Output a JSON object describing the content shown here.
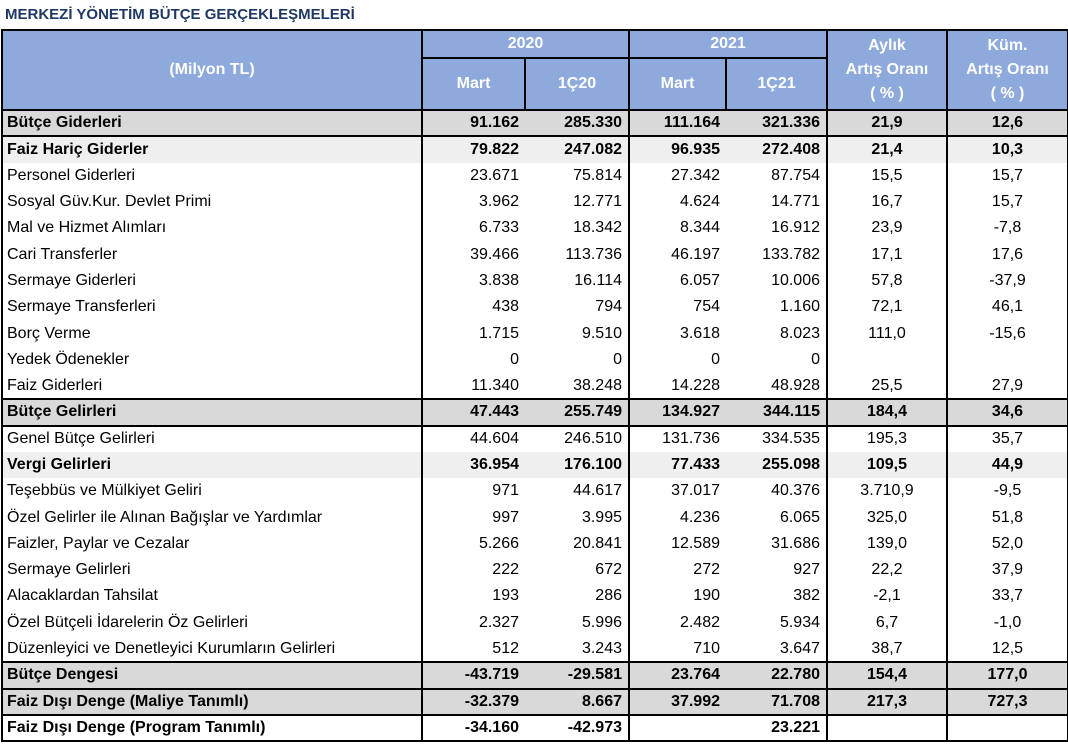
{
  "title": "MERKEZİ YÖNETİM BÜTÇE GERÇEKLEŞMELERİ",
  "header": {
    "unit_label": "(Milyon TL)",
    "year_2020": "2020",
    "year_2021": "2021",
    "col_mart_2020": "Mart",
    "col_q_2020": "1Ç20",
    "col_mart_2021": "Mart",
    "col_q_2021": "1Ç21",
    "monthly_line1": "Aylık",
    "monthly_line2": "Artış Oranı",
    "monthly_line3": "( % )",
    "cum_line1": "Küm.",
    "cum_line2": "Artış Oranı",
    "cum_line3": "( % )"
  },
  "rows": [
    {
      "name": "Bütçe Giderleri",
      "m2020": "91.162",
      "q2020": "285.330",
      "m2021": "111.164",
      "q2021": "321.336",
      "monthly": "21,9",
      "cum": "12,6",
      "style": "bold shade-dark"
    },
    {
      "name": "Faiz Hariç Giderler",
      "m2020": "79.822",
      "q2020": "247.082",
      "m2021": "96.935",
      "q2021": "272.408",
      "monthly": "21,4",
      "cum": "10,3",
      "style": "bold shade-light"
    },
    {
      "name": "Personel Giderleri",
      "m2020": "23.671",
      "q2020": "75.814",
      "m2021": "27.342",
      "q2021": "87.754",
      "monthly": "15,5",
      "cum": "15,7",
      "style": "shade-none"
    },
    {
      "name": "Sosyal Güv.Kur. Devlet Primi",
      "m2020": "3.962",
      "q2020": "12.771",
      "m2021": "4.624",
      "q2021": "14.771",
      "monthly": "16,7",
      "cum": "15,7",
      "style": "shade-none"
    },
    {
      "name": "Mal ve Hizmet Alımları",
      "m2020": "6.733",
      "q2020": "18.342",
      "m2021": "8.344",
      "q2021": "16.912",
      "monthly": "23,9",
      "cum": "-7,8",
      "style": "shade-none"
    },
    {
      "name": "Cari Transferler",
      "m2020": "39.466",
      "q2020": "113.736",
      "m2021": "46.197",
      "q2021": "133.782",
      "monthly": "17,1",
      "cum": "17,6",
      "style": "shade-none"
    },
    {
      "name": "Sermaye Giderleri",
      "m2020": "3.838",
      "q2020": "16.114",
      "m2021": "6.057",
      "q2021": "10.006",
      "monthly": "57,8",
      "cum": "-37,9",
      "style": "shade-none"
    },
    {
      "name": "Sermaye Transferleri",
      "m2020": "438",
      "q2020": "794",
      "m2021": "754",
      "q2021": "1.160",
      "monthly": "72,1",
      "cum": "46,1",
      "style": "shade-none"
    },
    {
      "name": "Borç Verme",
      "m2020": "1.715",
      "q2020": "9.510",
      "m2021": "3.618",
      "q2021": "8.023",
      "monthly": "111,0",
      "cum": "-15,6",
      "style": "shade-none"
    },
    {
      "name": "Yedek Ödenekler",
      "m2020": "0",
      "q2020": "0",
      "m2021": "0",
      "q2021": "0",
      "monthly": "",
      "cum": "",
      "style": "shade-none"
    },
    {
      "name": "Faiz Giderleri",
      "m2020": "11.340",
      "q2020": "38.248",
      "m2021": "14.228",
      "q2021": "48.928",
      "monthly": "25,5",
      "cum": "27,9",
      "style": "shade-none"
    },
    {
      "name": "Bütçe Gelirleri",
      "m2020": "47.443",
      "q2020": "255.749",
      "m2021": "134.927",
      "q2021": "344.115",
      "monthly": "184,4",
      "cum": "34,6",
      "style": "bold shade-dark"
    },
    {
      "name": "Genel Bütçe Gelirleri",
      "m2020": "44.604",
      "q2020": "246.510",
      "m2021": "131.736",
      "q2021": "334.535",
      "monthly": "195,3",
      "cum": "35,7",
      "style": "shade-none"
    },
    {
      "name": "Vergi Gelirleri",
      "m2020": "36.954",
      "q2020": "176.100",
      "m2021": "77.433",
      "q2021": "255.098",
      "monthly": "109,5",
      "cum": "44,9",
      "style": "bold shade-light"
    },
    {
      "name": "Teşebbüs ve Mülkiyet Geliri",
      "m2020": "971",
      "q2020": "44.617",
      "m2021": "37.017",
      "q2021": "40.376",
      "monthly": "3.710,9",
      "cum": "-9,5",
      "style": "shade-none"
    },
    {
      "name": "Özel Gelirler ile Alınan Bağışlar ve Yardımlar",
      "m2020": "997",
      "q2020": "3.995",
      "m2021": "4.236",
      "q2021": "6.065",
      "monthly": "325,0",
      "cum": "51,8",
      "style": "shade-none"
    },
    {
      "name": "Faizler, Paylar ve Cezalar",
      "m2020": "5.266",
      "q2020": "20.841",
      "m2021": "12.589",
      "q2021": "31.686",
      "monthly": "139,0",
      "cum": "52,0",
      "style": "shade-none"
    },
    {
      "name": "Sermaye Gelirleri",
      "m2020": "222",
      "q2020": "672",
      "m2021": "272",
      "q2021": "927",
      "monthly": "22,2",
      "cum": "37,9",
      "style": "shade-none"
    },
    {
      "name": "Alacaklardan Tahsilat",
      "m2020": "193",
      "q2020": "286",
      "m2021": "190",
      "q2021": "382",
      "monthly": "-2,1",
      "cum": "33,7",
      "style": "shade-none"
    },
    {
      "name": "Özel Bütçeli İdarelerin Öz  Gelirleri",
      "m2020": "2.327",
      "q2020": "5.996",
      "m2021": "2.482",
      "q2021": "5.934",
      "monthly": "6,7",
      "cum": "-1,0",
      "style": "shade-none"
    },
    {
      "name": "Düzenleyici ve Denetleyici Kurumların Gelirleri",
      "m2020": "512",
      "q2020": "3.243",
      "m2021": "710",
      "q2021": "3.647",
      "monthly": "38,7",
      "cum": "12,5",
      "style": "shade-none"
    },
    {
      "name": "Bütçe Dengesi",
      "m2020": "-43.719",
      "q2020": "-29.581",
      "m2021": "23.764",
      "q2021": "22.780",
      "monthly": "154,4",
      "cum": "177,0",
      "style": "bold shade-dark"
    },
    {
      "name": "Faiz Dışı Denge (Maliye Tanımlı)",
      "m2020": "-32.379",
      "q2020": "8.667",
      "m2021": "37.992",
      "q2021": "71.708",
      "monthly": "217,3",
      "cum": "727,3",
      "style": "bold shade-dark"
    },
    {
      "name": "Faiz Dışı Denge (Program Tanımlı)",
      "m2020": "-34.160",
      "q2020": "-42.973",
      "m2021": "",
      "q2021": "23.221",
      "monthly": "",
      "cum": "",
      "style": "bold shade-none"
    }
  ]
}
